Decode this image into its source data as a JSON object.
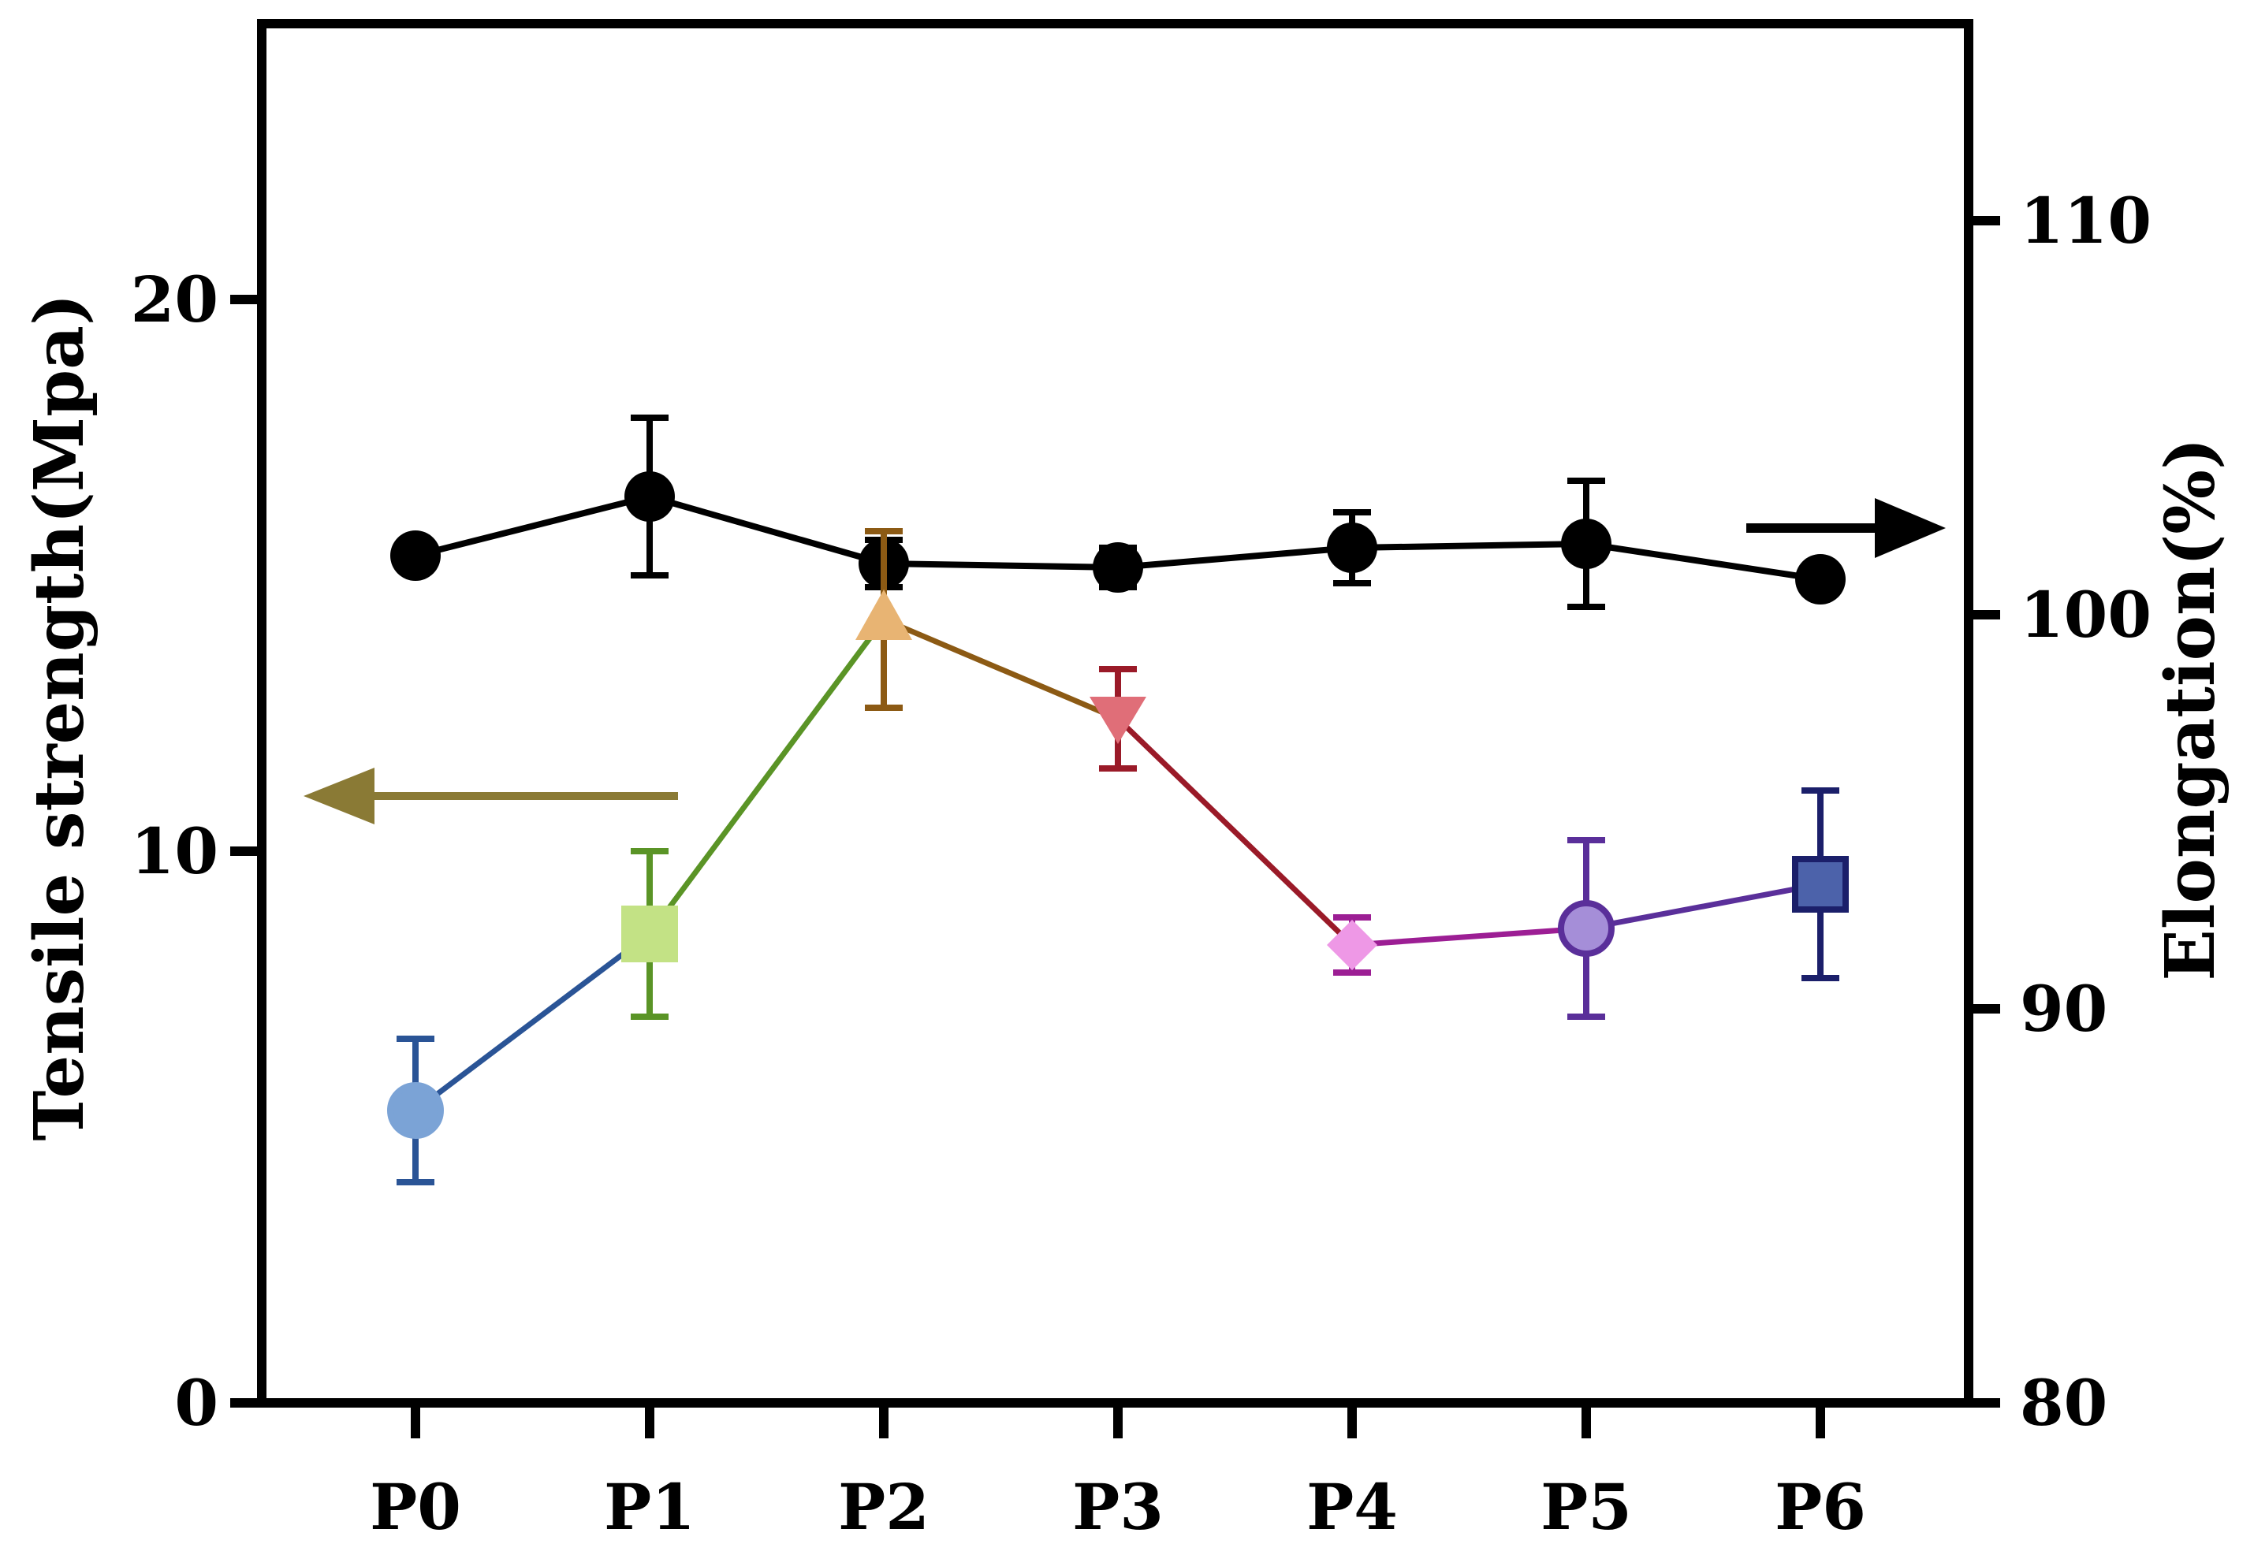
{
  "chart_data": {
    "type": "line",
    "categories": [
      "P0",
      "P1",
      "P2",
      "P3",
      "P4",
      "P5",
      "P6"
    ],
    "left_axis": {
      "label": "Tensile strength(Mpa)",
      "ylim": [
        0,
        25
      ],
      "ticks": [
        0,
        10,
        20
      ],
      "tick_labels": [
        "0",
        "10",
        "20"
      ]
    },
    "right_axis": {
      "label": "Elongation(%)",
      "ylim": [
        80,
        115
      ],
      "ticks": [
        80,
        90,
        100,
        110
      ],
      "tick_labels": [
        "80",
        "90",
        "100",
        "110"
      ]
    },
    "series": [
      {
        "name": "Tensile strength",
        "axis": "left",
        "values": [
          5.3,
          8.5,
          14.2,
          12.4,
          8.3,
          8.6,
          9.4
        ],
        "errors": [
          1.3,
          1.5,
          1.6,
          0.9,
          0.5,
          1.6,
          1.7
        ],
        "points": [
          {
            "marker": "circle",
            "color": "#7BA3D6",
            "edge": "#7BA3D6",
            "err_color": "#2A5496"
          },
          {
            "marker": "square",
            "color": "#C3E285",
            "edge": "#C3E285",
            "err_color": "#5A9426"
          },
          {
            "marker": "triangle-up",
            "color": "#E8B473",
            "edge": "#E8B473",
            "err_color": "#8C5A14"
          },
          {
            "marker": "triangle-down",
            "color": "#E06E78",
            "edge": "#E06E78",
            "err_color": "#9A1A28"
          },
          {
            "marker": "diamond",
            "color": "#EE98E6",
            "edge": "#EE98E6",
            "err_color": "#9C1E94"
          },
          {
            "marker": "circle",
            "color": "#A58ED8",
            "edge": "#5A2F9A",
            "err_color": "#5A2F9A"
          },
          {
            "marker": "square",
            "color": "#4C62AA",
            "edge": "#1B1F6A",
            "err_color": "#1B1F6A"
          }
        ],
        "segment_colors": [
          "#2A5496",
          "#5A9426",
          "#8C5A14",
          "#9A1A28",
          "#9C1E94",
          "#5A2F9A"
        ]
      },
      {
        "name": "Elongation",
        "axis": "right",
        "values": [
          101.5,
          103.0,
          101.3,
          101.2,
          101.7,
          101.8,
          100.9
        ],
        "errors": [
          0,
          2.0,
          0.6,
          0.5,
          0.9,
          1.6,
          0
        ],
        "color": "#000000",
        "marker": "circle"
      }
    ],
    "annotations": [
      {
        "type": "arrow",
        "direction": "left",
        "points_to": "left axis",
        "color": "#8A7A35"
      },
      {
        "type": "arrow",
        "direction": "right",
        "points_to": "right axis",
        "color": "#000000"
      }
    ]
  }
}
